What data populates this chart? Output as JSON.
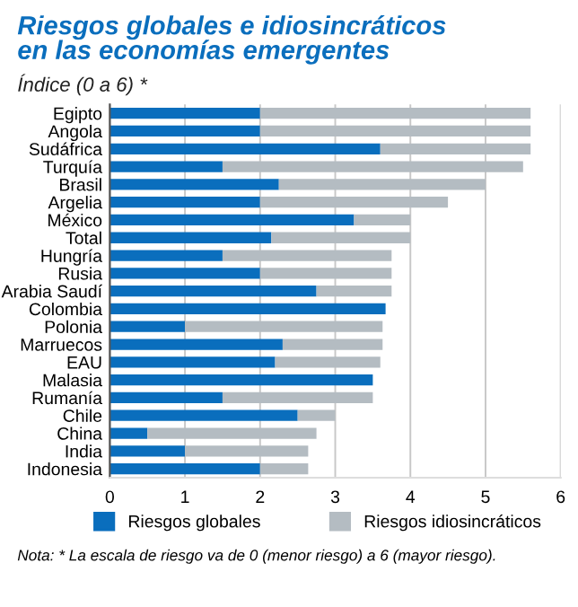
{
  "chart_data": {
    "type": "bar",
    "orientation": "horizontal",
    "stacked": true,
    "title": "Riesgos globales e idiosincráticos\nen las economías emergentes",
    "subtitle": "Índice (0 a 6) *",
    "categories": [
      "Egipto",
      "Angola",
      "Sudáfrica",
      "Turquía",
      "Brasil",
      "Argelia",
      "México",
      "Total",
      "Hungría",
      "Rusia",
      "Arabia Saudí",
      "Colombia",
      "Polonia",
      "Marruecos",
      "EAU",
      "Malasia",
      "Rumanía",
      "Chile",
      "China",
      "India",
      "Indonesia"
    ],
    "series": [
      {
        "name": "Riesgos globales",
        "color": "#0a6ebd",
        "values": [
          2.0,
          2.0,
          3.6,
          1.5,
          2.25,
          2.0,
          3.25,
          2.15,
          1.5,
          2.0,
          2.75,
          3.67,
          1.0,
          2.3,
          2.2,
          3.5,
          1.5,
          2.5,
          0.5,
          1.0,
          2.0
        ]
      },
      {
        "name": "Riesgos idiosincráticos",
        "color": "#b4bcc2",
        "values": [
          3.6,
          3.6,
          2.0,
          4.0,
          2.75,
          2.5,
          0.75,
          1.85,
          2.25,
          1.75,
          1.0,
          0.0,
          2.63,
          1.33,
          1.4,
          0.0,
          2.0,
          0.5,
          2.25,
          1.64,
          0.64
        ]
      }
    ],
    "xlim": [
      0,
      6
    ],
    "xticks": [
      0,
      1,
      2,
      3,
      4,
      5,
      6
    ],
    "grid": "x",
    "legend": "bottom",
    "annotations": [
      "Nota: * La escala de riesgo va de 0 (menor riesgo) a 6 (mayor riesgo)."
    ]
  }
}
